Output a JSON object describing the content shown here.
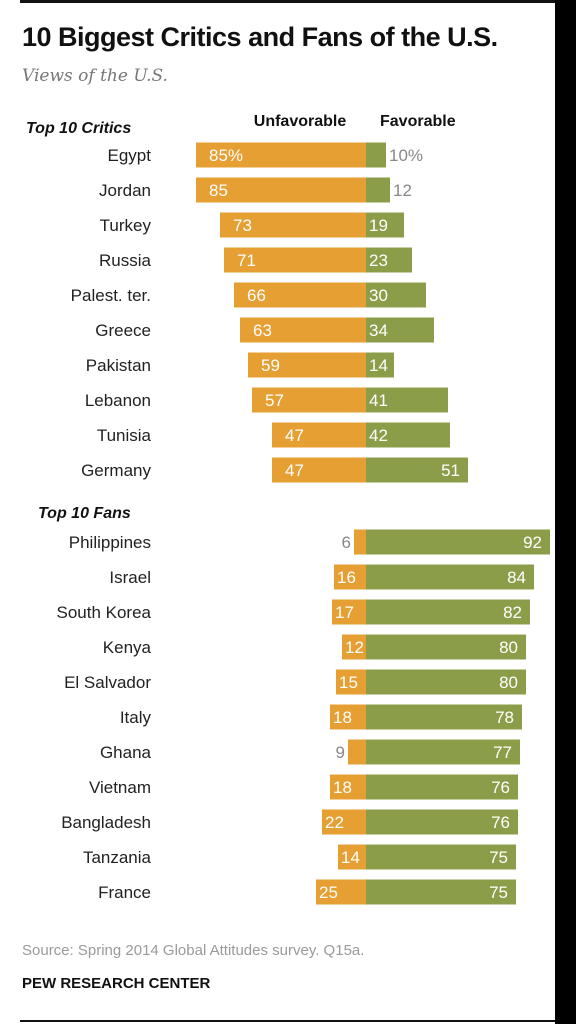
{
  "header": {
    "title": "10 Biggest Critics and Fans of the U.S.",
    "subtitle": "Views of the U.S."
  },
  "footer": {
    "source": "Source: Spring 2014 Global Attitudes survey. Q15a.",
    "org": "PEW RESEARCH CENTER"
  },
  "chart_data": {
    "type": "bar",
    "orientation": "horizontal",
    "layout": "diverging",
    "title": "10 Biggest Critics and Fans of the U.S.",
    "subtitle": "Views of the U.S.",
    "column_headers": {
      "unfavorable": "Unfavorable",
      "favorable": "Favorable"
    },
    "value_suffix_first_row": "%",
    "colors": {
      "unfavorable": "#e69f33",
      "favorable": "#8c9d4a",
      "outside_label": "#888888",
      "inside_label": "#ffffff"
    },
    "groups": [
      {
        "label": "Top 10 Critics",
        "rows": [
          {
            "country": "Egypt",
            "unfavorable": 85,
            "favorable": 10
          },
          {
            "country": "Jordan",
            "unfavorable": 85,
            "favorable": 12
          },
          {
            "country": "Turkey",
            "unfavorable": 73,
            "favorable": 19
          },
          {
            "country": "Russia",
            "unfavorable": 71,
            "favorable": 23
          },
          {
            "country": "Palest. ter.",
            "unfavorable": 66,
            "favorable": 30
          },
          {
            "country": "Greece",
            "unfavorable": 63,
            "favorable": 34
          },
          {
            "country": "Pakistan",
            "unfavorable": 59,
            "favorable": 14
          },
          {
            "country": "Lebanon",
            "unfavorable": 57,
            "favorable": 41
          },
          {
            "country": "Tunisia",
            "unfavorable": 47,
            "favorable": 42
          },
          {
            "country": "Germany",
            "unfavorable": 47,
            "favorable": 51
          }
        ]
      },
      {
        "label": "Top 10 Fans",
        "rows": [
          {
            "country": "Philippines",
            "unfavorable": 6,
            "favorable": 92
          },
          {
            "country": "Israel",
            "unfavorable": 16,
            "favorable": 84
          },
          {
            "country": "South Korea",
            "unfavorable": 17,
            "favorable": 82
          },
          {
            "country": "Kenya",
            "unfavorable": 12,
            "favorable": 80
          },
          {
            "country": "El Salvador",
            "unfavorable": 15,
            "favorable": 80
          },
          {
            "country": "Italy",
            "unfavorable": 18,
            "favorable": 78
          },
          {
            "country": "Ghana",
            "unfavorable": 9,
            "favorable": 77
          },
          {
            "country": "Vietnam",
            "unfavorable": 18,
            "favorable": 76
          },
          {
            "country": "Bangladesh",
            "unfavorable": 22,
            "favorable": 76
          },
          {
            "country": "Tanzania",
            "unfavorable": 14,
            "favorable": 75
          },
          {
            "country": "France",
            "unfavorable": 25,
            "favorable": 75
          }
        ]
      }
    ]
  }
}
